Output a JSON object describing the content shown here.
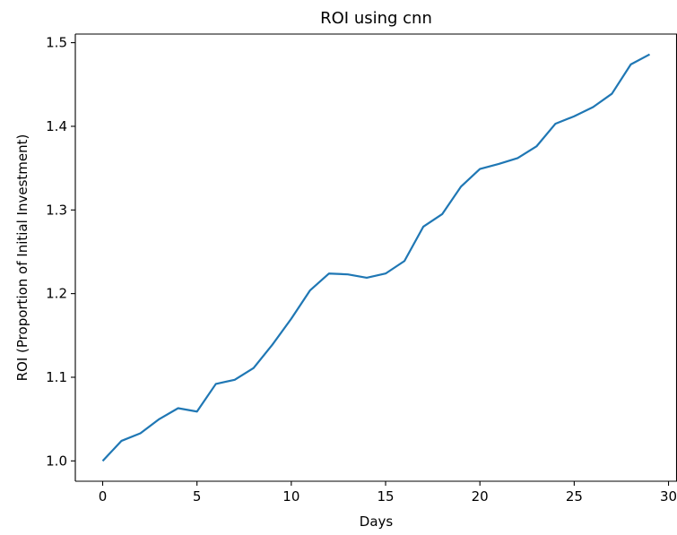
{
  "chart_data": {
    "type": "line",
    "title": "ROI using cnn",
    "xlabel": "Days",
    "ylabel": "ROI (Proportion of Initial Investment)",
    "xlim": [
      -1.45,
      30.45
    ],
    "ylim": [
      0.9757,
      1.5103
    ],
    "xticks": [
      0,
      5,
      10,
      15,
      20,
      25,
      30
    ],
    "xtick_labels": [
      "0",
      "5",
      "10",
      "15",
      "20",
      "25",
      "30"
    ],
    "yticks": [
      1.0,
      1.1,
      1.2,
      1.3,
      1.4,
      1.5
    ],
    "ytick_labels": [
      "1.0",
      "1.1",
      "1.2",
      "1.3",
      "1.4",
      "1.5"
    ],
    "grid": false,
    "series": [
      {
        "color": "#1f77b4",
        "x": [
          0,
          1,
          2,
          3,
          4,
          5,
          6,
          7,
          8,
          9,
          10,
          11,
          12,
          13,
          14,
          15,
          16,
          17,
          18,
          19,
          20,
          21,
          22,
          23,
          24,
          25,
          26,
          27,
          28,
          29
        ],
        "y": [
          1.0,
          1.024,
          1.033,
          1.05,
          1.063,
          1.059,
          1.092,
          1.097,
          1.111,
          1.139,
          1.17,
          1.204,
          1.224,
          1.223,
          1.219,
          1.224,
          1.239,
          1.28,
          1.295,
          1.328,
          1.349,
          1.355,
          1.362,
          1.376,
          1.403,
          1.412,
          1.423,
          1.439,
          1.474,
          1.486
        ]
      }
    ]
  }
}
